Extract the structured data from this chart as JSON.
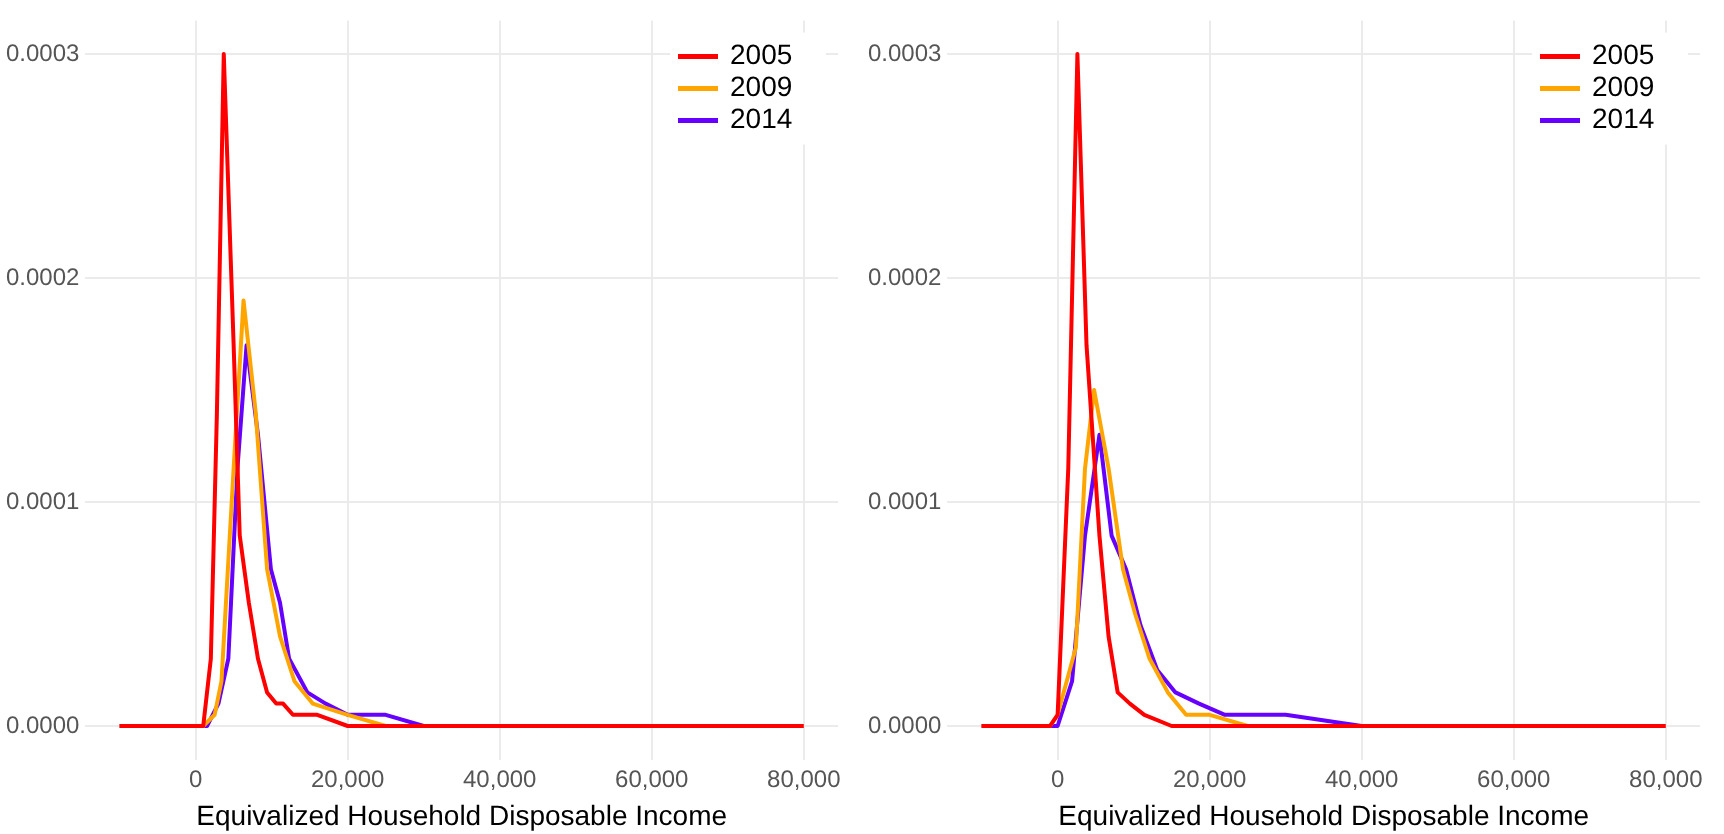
{
  "chart_data": [
    {
      "type": "line",
      "xlabel": "Equivalized Household Disposable Income",
      "legend": "top right",
      "grid": true,
      "marker": "none",
      "line_style": "solid",
      "xlim": [
        -14500,
        84500
      ],
      "ylim": [
        -1.5e-05,
        0.000315
      ],
      "xticks": [
        {
          "value": 0,
          "label": "0"
        },
        {
          "value": 20000,
          "label": "20,000"
        },
        {
          "value": 40000,
          "label": "40,000"
        },
        {
          "value": 60000,
          "label": "60,000"
        },
        {
          "value": 80000,
          "label": "80,000"
        }
      ],
      "yticks": [
        {
          "value": 0,
          "label": "0.0000"
        },
        {
          "value": 0.0001,
          "label": "0.0001"
        },
        {
          "value": 0.0002,
          "label": "0.0002"
        },
        {
          "value": 0.0003,
          "label": "0.0003"
        }
      ],
      "series": [
        {
          "name": "2005",
          "color": "#ff0000",
          "x": [
            -10000,
            0,
            1000,
            2000,
            2800,
            3700,
            5000,
            5800,
            7000,
            8200,
            9400,
            10600,
            11500,
            12800,
            16000,
            20000,
            25000,
            30000,
            80000
          ],
          "values": [
            0,
            0,
            0,
            3e-05,
            0.00014,
            0.0003,
            0.00017,
            8.5e-05,
            5.5e-05,
            3e-05,
            1.5e-05,
            1e-05,
            1e-05,
            5e-06,
            5e-06,
            0,
            0,
            0,
            0
          ]
        },
        {
          "name": "2009",
          "color": "#ffa500",
          "x": [
            -10000,
            0,
            1000,
            2500,
            3400,
            5000,
            6300,
            7900,
            9400,
            11100,
            13000,
            15400,
            20000,
            25000,
            30000
          ],
          "values": [
            0,
            0,
            0,
            5e-06,
            2e-05,
            0.000115,
            0.00019,
            0.00014,
            7e-05,
            4e-05,
            2e-05,
            1e-05,
            5e-06,
            0,
            0
          ]
        },
        {
          "name": "2014",
          "color": "#6600ff",
          "x": [
            -10000,
            0,
            1500,
            3000,
            4300,
            5500,
            6700,
            8200,
            9900,
            11100,
            12300,
            14700,
            17100,
            20000,
            25000,
            30000,
            40000
          ],
          "values": [
            0,
            0,
            0,
            1e-05,
            3e-05,
            0.000115,
            0.00017,
            0.00013,
            7e-05,
            5.5e-05,
            3e-05,
            1.5e-05,
            1e-05,
            5e-06,
            5e-06,
            0,
            0
          ]
        }
      ]
    },
    {
      "type": "line",
      "xlabel": "Equivalized Household Disposable Income",
      "legend": "top right",
      "grid": true,
      "marker": "none",
      "line_style": "solid",
      "xlim": [
        -14500,
        84500
      ],
      "ylim": [
        -1.5e-05,
        0.000315
      ],
      "xticks": [
        {
          "value": 0,
          "label": "0"
        },
        {
          "value": 20000,
          "label": "20,000"
        },
        {
          "value": 40000,
          "label": "40,000"
        },
        {
          "value": 60000,
          "label": "60,000"
        },
        {
          "value": 80000,
          "label": "80,000"
        }
      ],
      "yticks": [
        {
          "value": 0,
          "label": "0.0000"
        },
        {
          "value": 0.0001,
          "label": "0.0001"
        },
        {
          "value": 0.0002,
          "label": "0.0002"
        },
        {
          "value": 0.0003,
          "label": "0.0003"
        }
      ],
      "series": [
        {
          "name": "2005",
          "color": "#ff0000",
          "x": [
            -10000,
            -1000,
            0,
            1400,
            2600,
            3800,
            5500,
            6700,
            7900,
            9500,
            11400,
            15000,
            20000,
            25000,
            80000
          ],
          "values": [
            0,
            0,
            5e-06,
            0.000115,
            0.0003,
            0.00017,
            8.5e-05,
            4e-05,
            1.5e-05,
            1e-05,
            5e-06,
            0,
            0,
            0,
            0
          ]
        },
        {
          "name": "2009",
          "color": "#ffa500",
          "x": [
            -10000,
            -1000,
            0,
            2400,
            3600,
            4800,
            6700,
            8600,
            10200,
            12100,
            14500,
            16900,
            20000,
            25000,
            30000
          ],
          "values": [
            0,
            0,
            5e-06,
            3.5e-05,
            0.000115,
            0.00015,
            0.000115,
            7e-05,
            5e-05,
            3e-05,
            1.5e-05,
            5e-06,
            5e-06,
            0,
            0
          ]
        },
        {
          "name": "2014",
          "color": "#6600ff",
          "x": [
            -10000,
            -1000,
            0,
            1900,
            3600,
            5500,
            7100,
            9000,
            10900,
            13100,
            15500,
            18600,
            22000,
            26000,
            30000,
            40000,
            50000
          ],
          "values": [
            0,
            0,
            0,
            2e-05,
            8.5e-05,
            0.00013,
            8.5e-05,
            7e-05,
            4.5e-05,
            2.5e-05,
            1.5e-05,
            1e-05,
            5e-06,
            5e-06,
            5e-06,
            0,
            0
          ]
        }
      ]
    }
  ]
}
